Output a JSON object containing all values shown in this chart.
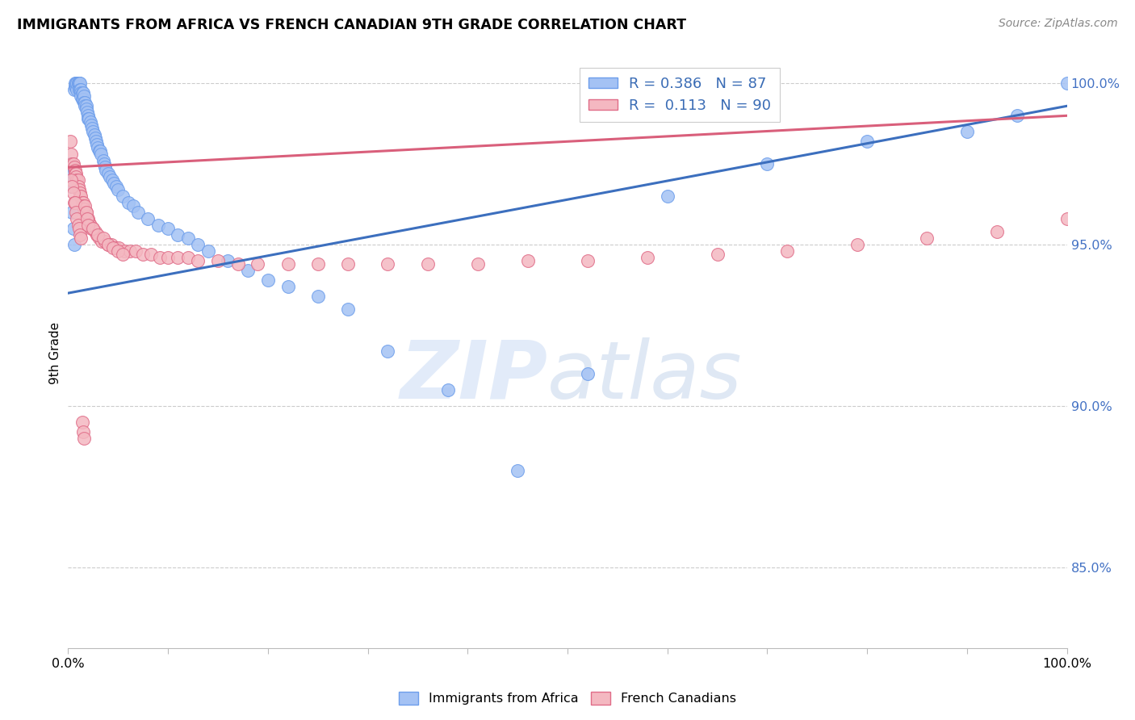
{
  "title": "IMMIGRANTS FROM AFRICA VS FRENCH CANADIAN 9TH GRADE CORRELATION CHART",
  "source": "Source: ZipAtlas.com",
  "ylabel": "9th Grade",
  "yticks": [
    0.85,
    0.9,
    0.95,
    1.0
  ],
  "ytick_labels": [
    "85.0%",
    "90.0%",
    "95.0%",
    "100.0%"
  ],
  "xlim": [
    0.0,
    1.0
  ],
  "ylim": [
    0.825,
    1.008
  ],
  "r_blue": 0.386,
  "n_blue": 87,
  "r_pink": 0.113,
  "n_pink": 90,
  "blue_color": "#a4c2f4",
  "pink_color": "#f4b8c1",
  "blue_edge": "#6d9eeb",
  "pink_edge": "#e06c88",
  "trendline_blue": "#3c6fbe",
  "trendline_pink": "#d95f7b",
  "watermark_zip": "ZIP",
  "watermark_atlas": "atlas",
  "blue_scatter_x": [
    0.002,
    0.003,
    0.004,
    0.005,
    0.006,
    0.007,
    0.007,
    0.008,
    0.008,
    0.009,
    0.009,
    0.01,
    0.01,
    0.011,
    0.011,
    0.011,
    0.012,
    0.012,
    0.013,
    0.013,
    0.013,
    0.014,
    0.014,
    0.015,
    0.015,
    0.016,
    0.016,
    0.017,
    0.017,
    0.018,
    0.018,
    0.019,
    0.02,
    0.02,
    0.021,
    0.022,
    0.023,
    0.024,
    0.025,
    0.026,
    0.027,
    0.028,
    0.029,
    0.03,
    0.031,
    0.032,
    0.033,
    0.035,
    0.036,
    0.037,
    0.038,
    0.04,
    0.042,
    0.044,
    0.046,
    0.048,
    0.05,
    0.055,
    0.06,
    0.065,
    0.07,
    0.08,
    0.09,
    0.1,
    0.11,
    0.12,
    0.13,
    0.14,
    0.16,
    0.18,
    0.2,
    0.22,
    0.25,
    0.28,
    0.32,
    0.38,
    0.45,
    0.52,
    0.6,
    0.7,
    0.8,
    0.9,
    0.95,
    1.0,
    0.004,
    0.005,
    0.006
  ],
  "blue_scatter_y": [
    0.975,
    0.968,
    0.97,
    0.972,
    0.998,
    0.999,
    1.0,
    0.999,
    1.0,
    0.998,
    1.0,
    1.0,
    1.0,
    1.0,
    1.0,
    0.998,
    1.0,
    0.998,
    0.998,
    0.997,
    0.996,
    0.997,
    0.995,
    0.997,
    0.995,
    0.996,
    0.994,
    0.994,
    0.993,
    0.993,
    0.992,
    0.991,
    0.99,
    0.989,
    0.989,
    0.988,
    0.987,
    0.986,
    0.985,
    0.984,
    0.983,
    0.982,
    0.981,
    0.98,
    0.979,
    0.979,
    0.978,
    0.976,
    0.975,
    0.974,
    0.973,
    0.972,
    0.971,
    0.97,
    0.969,
    0.968,
    0.967,
    0.965,
    0.963,
    0.962,
    0.96,
    0.958,
    0.956,
    0.955,
    0.953,
    0.952,
    0.95,
    0.948,
    0.945,
    0.942,
    0.939,
    0.937,
    0.934,
    0.93,
    0.917,
    0.905,
    0.88,
    0.91,
    0.965,
    0.975,
    0.982,
    0.985,
    0.99,
    1.0,
    0.96,
    0.955,
    0.95
  ],
  "pink_scatter_x": [
    0.002,
    0.003,
    0.004,
    0.005,
    0.006,
    0.007,
    0.007,
    0.008,
    0.008,
    0.009,
    0.01,
    0.01,
    0.011,
    0.012,
    0.012,
    0.013,
    0.014,
    0.015,
    0.015,
    0.016,
    0.017,
    0.018,
    0.019,
    0.02,
    0.021,
    0.022,
    0.023,
    0.025,
    0.027,
    0.029,
    0.031,
    0.034,
    0.037,
    0.04,
    0.043,
    0.047,
    0.051,
    0.056,
    0.062,
    0.068,
    0.075,
    0.083,
    0.092,
    0.1,
    0.11,
    0.12,
    0.13,
    0.15,
    0.17,
    0.19,
    0.22,
    0.25,
    0.28,
    0.32,
    0.36,
    0.41,
    0.46,
    0.52,
    0.58,
    0.65,
    0.72,
    0.79,
    0.86,
    0.93,
    1.0,
    0.003,
    0.004,
    0.005,
    0.006,
    0.007,
    0.008,
    0.009,
    0.01,
    0.011,
    0.012,
    0.013,
    0.014,
    0.015,
    0.016,
    0.017,
    0.018,
    0.019,
    0.02,
    0.025,
    0.03,
    0.035,
    0.04,
    0.045,
    0.05,
    0.055
  ],
  "pink_scatter_y": [
    0.982,
    0.978,
    0.975,
    0.975,
    0.974,
    0.973,
    0.972,
    0.972,
    0.971,
    0.97,
    0.97,
    0.968,
    0.967,
    0.966,
    0.965,
    0.965,
    0.963,
    0.963,
    0.962,
    0.961,
    0.96,
    0.96,
    0.958,
    0.958,
    0.957,
    0.956,
    0.955,
    0.955,
    0.954,
    0.953,
    0.952,
    0.951,
    0.951,
    0.95,
    0.95,
    0.949,
    0.949,
    0.948,
    0.948,
    0.948,
    0.947,
    0.947,
    0.946,
    0.946,
    0.946,
    0.946,
    0.945,
    0.945,
    0.944,
    0.944,
    0.944,
    0.944,
    0.944,
    0.944,
    0.944,
    0.944,
    0.945,
    0.945,
    0.946,
    0.947,
    0.948,
    0.95,
    0.952,
    0.954,
    0.958,
    0.97,
    0.968,
    0.966,
    0.963,
    0.963,
    0.96,
    0.958,
    0.956,
    0.955,
    0.953,
    0.952,
    0.895,
    0.892,
    0.89,
    0.962,
    0.96,
    0.958,
    0.956,
    0.955,
    0.953,
    0.952,
    0.95,
    0.949,
    0.948,
    0.947
  ]
}
